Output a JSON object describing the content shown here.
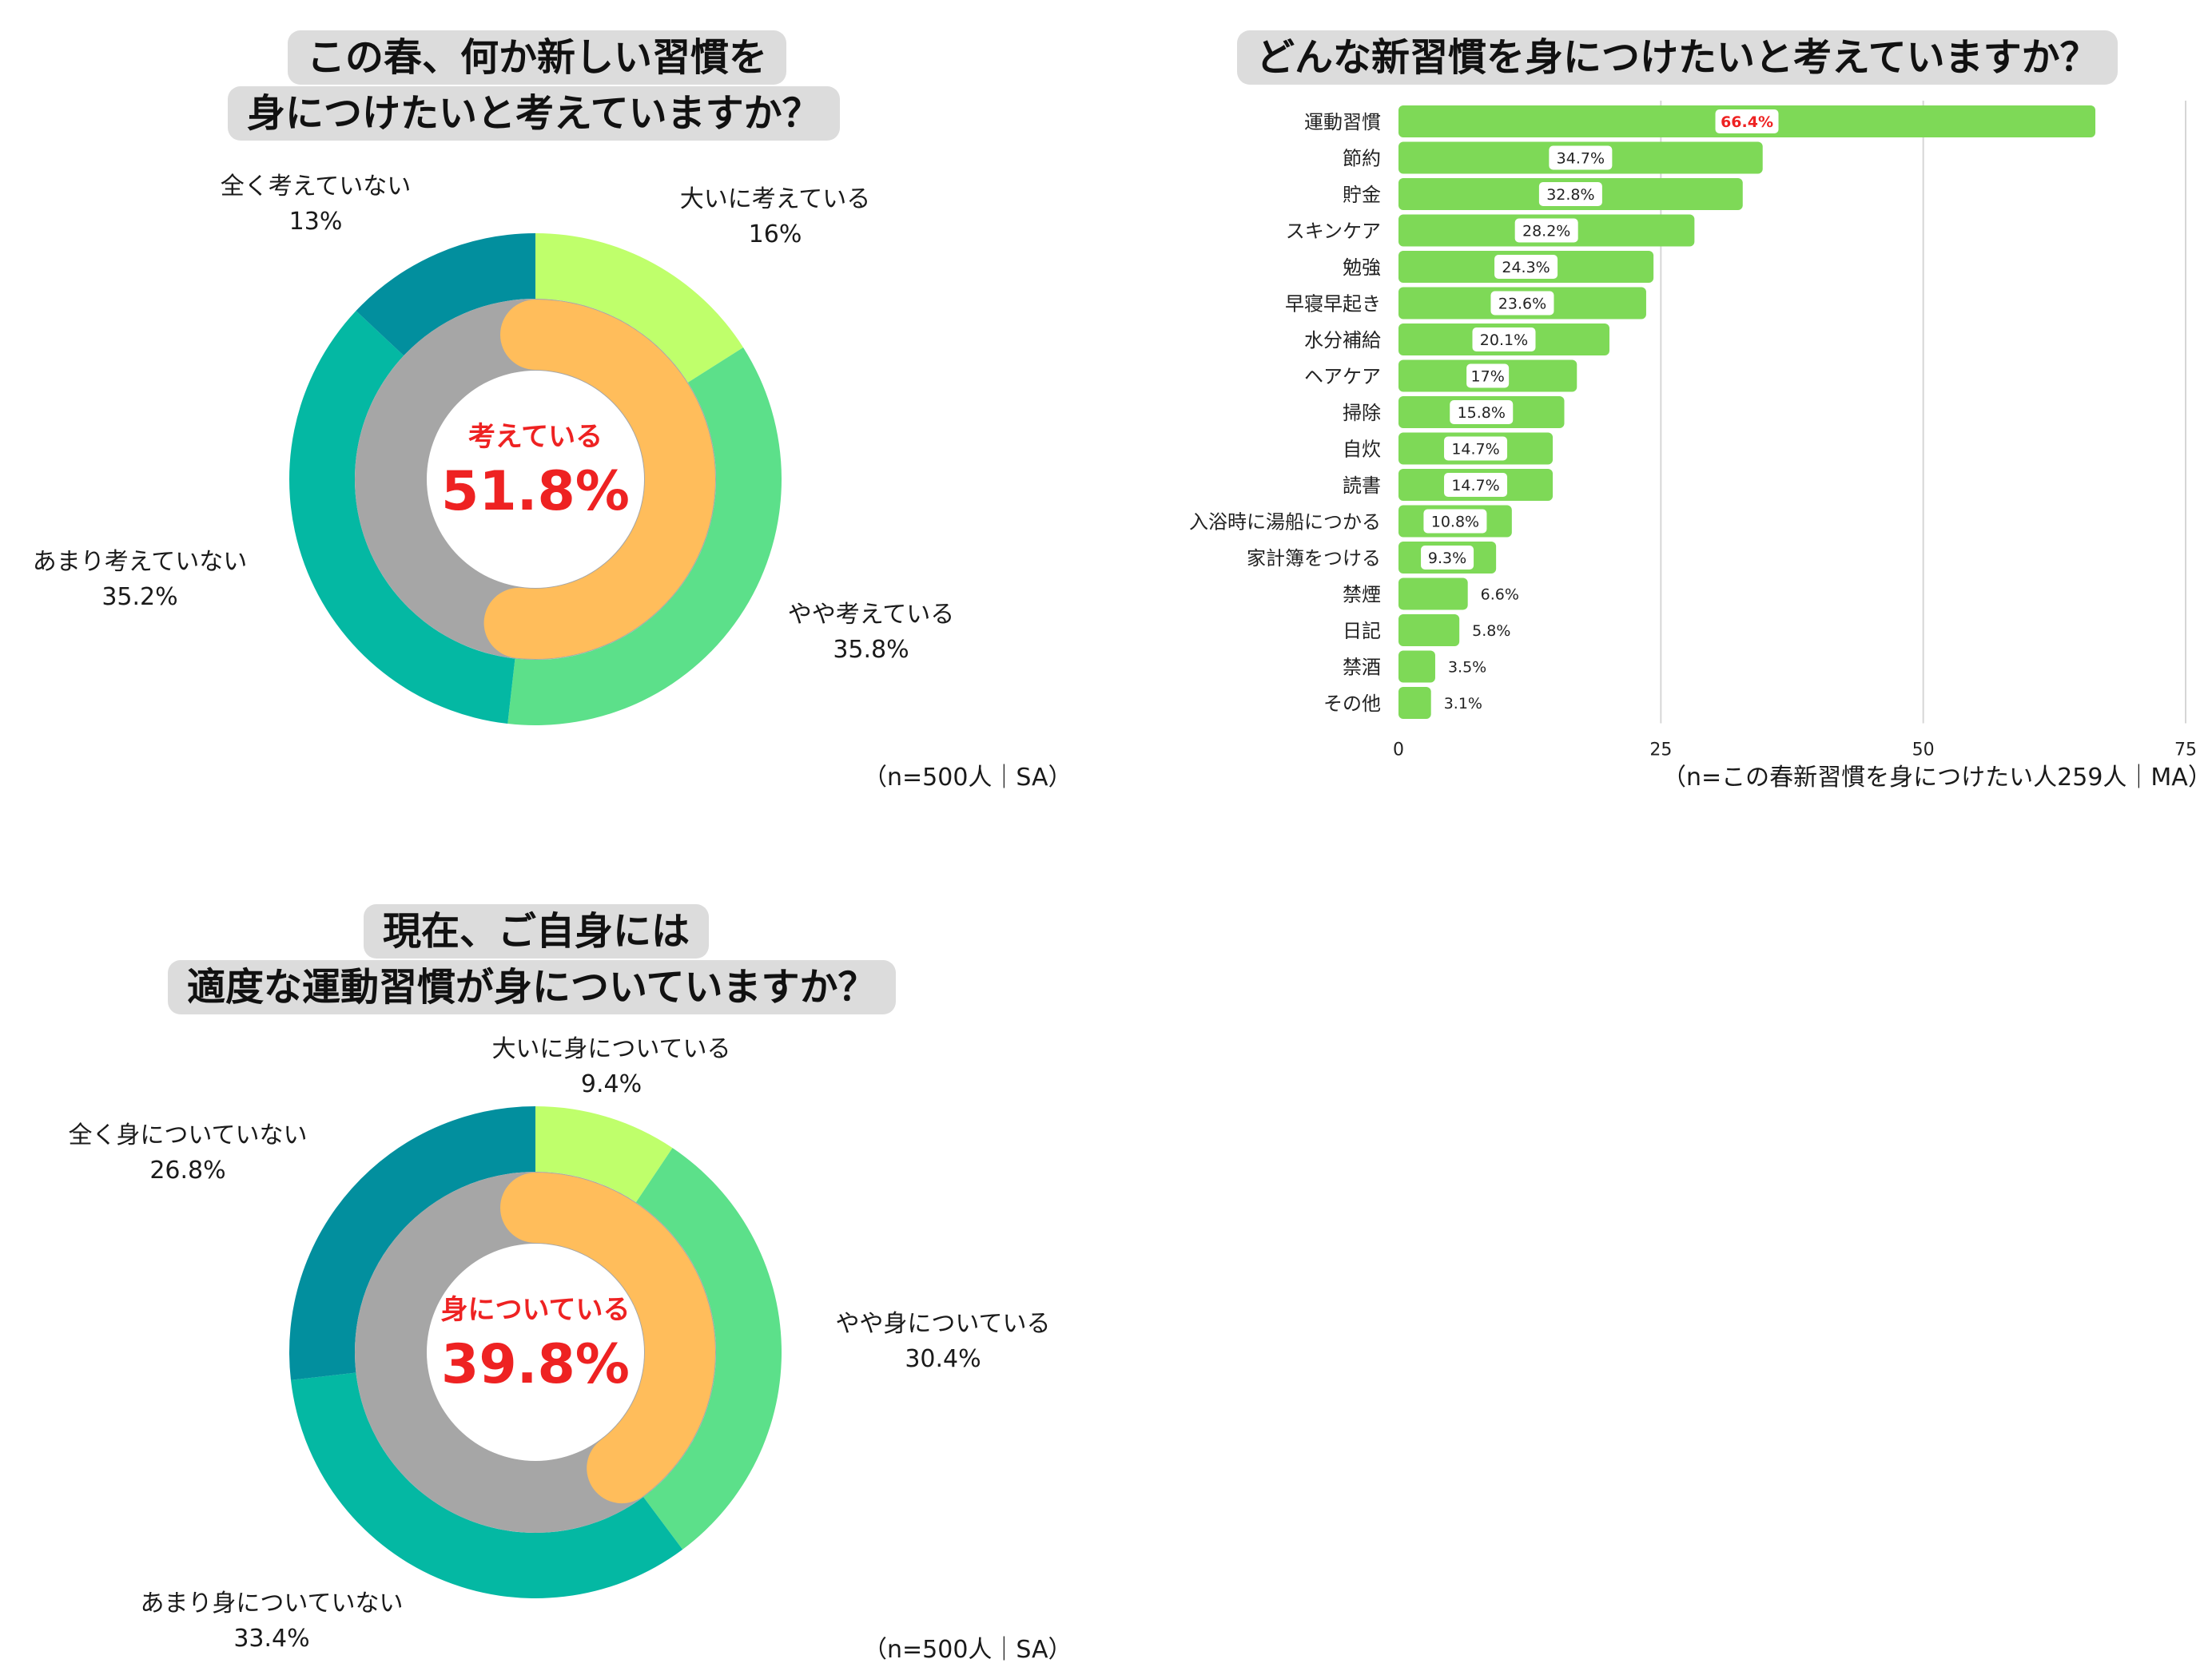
{
  "chart_data": [
    {
      "id": "donut1",
      "type": "pie",
      "title_lines": [
        "この春、何か新しい習慣を",
        "身につけたいと考えていますか？"
      ],
      "categories": [
        "大いに考えている",
        "やや考えている",
        "あまり考えていない",
        "全く考えていない"
      ],
      "values": [
        16,
        35.8,
        35.2,
        13
      ],
      "value_labels": [
        "16%",
        "35.8%",
        "35.2%",
        "13%"
      ],
      "center_label": "考えている",
      "center_value_text": "51.8%",
      "center_value": 51.8,
      "note": "（n=500人｜SA）"
    },
    {
      "id": "bar1",
      "type": "bar",
      "orientation": "horizontal",
      "title": "どんな新習慣を身につけたいと考えていますか？",
      "categories": [
        "運動習慣",
        "節約",
        "貯金",
        "スキンケア",
        "勉強",
        "早寝早起き",
        "水分補給",
        "ヘアケア",
        "掃除",
        "自炊",
        "読書",
        "入浴時に湯船につかる",
        "家計簿をつける",
        "禁煙",
        "日記",
        "禁酒",
        "その他"
      ],
      "values": [
        66.4,
        34.7,
        32.8,
        28.2,
        24.3,
        23.6,
        20.1,
        17,
        15.8,
        14.7,
        14.7,
        10.8,
        9.3,
        6.6,
        5.8,
        3.5,
        3.1
      ],
      "value_labels": [
        "66.4%",
        "34.7%",
        "32.8%",
        "28.2%",
        "24.3%",
        "23.6%",
        "20.1%",
        "17%",
        "15.8%",
        "14.7%",
        "14.7%",
        "10.8%",
        "9.3%",
        "6.6%",
        "5.8%",
        "3.5%",
        "3.1%"
      ],
      "xlim": [
        0,
        75
      ],
      "xticks": [
        "0",
        "25",
        "50",
        "75"
      ],
      "grid": true,
      "note": "（n=この春新習慣を身につけたい人259人｜MA）"
    },
    {
      "id": "donut2",
      "type": "pie",
      "title_lines": [
        "現在、ご自身には",
        "適度な運動習慣が身についていますか？"
      ],
      "categories": [
        "大いに身についている",
        "やや身についている",
        "あまり身についていない",
        "全く身についていない"
      ],
      "values": [
        9.4,
        30.4,
        33.4,
        26.8
      ],
      "value_labels": [
        "9.4%",
        "30.4%",
        "33.4%",
        "26.8%"
      ],
      "center_label": "身についている",
      "center_value_text": "39.8%",
      "center_value": 39.8,
      "note": "（n=500人｜SA）"
    }
  ],
  "colors": {
    "segment1": "#bfff6b",
    "segment2": "#5ce08a",
    "segment3": "#04b8a3",
    "segment4": "#028f9e",
    "inner_ring": "#a6a6a6",
    "arc": "#ffbd5b",
    "bar": "#7ed957",
    "highlight_red": "#ee2222",
    "grid": "#d6d6d6",
    "title_bg": "#dcdcdc"
  }
}
